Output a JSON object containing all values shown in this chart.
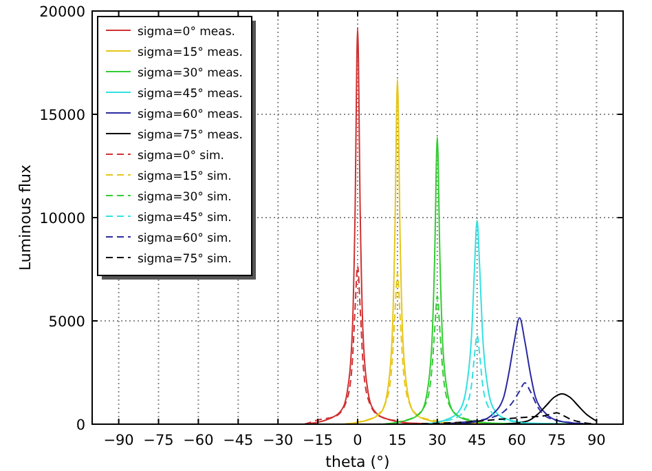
{
  "chart_data": {
    "type": "line",
    "xlabel": "theta (°)",
    "ylabel": "Luminous flux",
    "xlim": [
      -100,
      100
    ],
    "xticks": [
      -90,
      -75,
      -60,
      -45,
      -30,
      -15,
      0,
      15,
      30,
      45,
      60,
      75,
      90
    ],
    "ylim": [
      0,
      20000
    ],
    "yticks": [
      0,
      5000,
      10000,
      15000,
      20000
    ],
    "grid": true,
    "legend": "top left",
    "series": [
      {
        "name": "sigma=0° meas.",
        "color": "#d03030",
        "line_style": "solid",
        "x": [
          -20,
          -10,
          -6,
          -4,
          -2,
          -1,
          0,
          1,
          2,
          4,
          6,
          10,
          20,
          40,
          90
        ],
        "values": [
          0,
          300,
          700,
          1500,
          4500,
          10000,
          19200,
          10000,
          4500,
          1500,
          700,
          300,
          50,
          0,
          0
        ]
      },
      {
        "name": "sigma=15° meas.",
        "color": "#e6c619",
        "line_style": "solid",
        "x": [
          -5,
          5,
          9,
          11,
          13,
          14,
          15,
          16,
          17,
          19,
          21,
          25,
          35,
          90
        ],
        "values": [
          0,
          250,
          600,
          1400,
          4200,
          9000,
          16700,
          9000,
          4200,
          1400,
          600,
          250,
          50,
          0
        ]
      },
      {
        "name": "sigma=30° meas.",
        "color": "#33cc33",
        "line_style": "solid",
        "x": [
          10,
          20,
          24,
          26,
          28,
          29,
          30,
          31,
          32,
          34,
          36,
          40,
          50,
          90
        ],
        "values": [
          0,
          250,
          600,
          1400,
          4000,
          8000,
          13900,
          8000,
          4000,
          1400,
          600,
          250,
          50,
          0
        ]
      },
      {
        "name": "sigma=45° meas.",
        "color": "#33e0e0",
        "line_style": "solid",
        "x": [
          25,
          35,
          39,
          41,
          43,
          44,
          45,
          46,
          47,
          49,
          51,
          55,
          65,
          90
        ],
        "values": [
          0,
          300,
          800,
          1800,
          4500,
          7500,
          9870,
          7500,
          4500,
          1800,
          800,
          300,
          50,
          0
        ]
      },
      {
        "name": "sigma=60° meas.",
        "color": "#2a2aa0",
        "line_style": "solid",
        "x": [
          35,
          46,
          51,
          55,
          57,
          59,
          61,
          63,
          65,
          67,
          71,
          76,
          85,
          90
        ],
        "values": [
          0,
          150,
          500,
          1300,
          2500,
          4000,
          5150,
          4000,
          2500,
          1300,
          500,
          150,
          20,
          0
        ]
      },
      {
        "name": "sigma=75° meas.",
        "color": "#000000",
        "line_style": "solid",
        "x": [
          55,
          64,
          68,
          71,
          74,
          77,
          80,
          83,
          86,
          90
        ],
        "values": [
          0,
          150,
          500,
          900,
          1300,
          1470,
          1300,
          900,
          500,
          150
        ]
      },
      {
        "name": "sigma=0° sim.",
        "color": "#d03030",
        "line_style": "dashed",
        "x": [
          -20,
          -15,
          -8,
          -4,
          -2,
          -1,
          0,
          1,
          2,
          4,
          8,
          15,
          25,
          90
        ],
        "values": [
          0,
          200,
          400,
          1200,
          3000,
          5500,
          7670,
          5500,
          3000,
          1200,
          400,
          150,
          0,
          0
        ]
      },
      {
        "name": "sigma=15° sim.",
        "color": "#e6c619",
        "line_style": "dashed",
        "x": [
          -5,
          0,
          7,
          11,
          13,
          14,
          15,
          16,
          17,
          19,
          23,
          30,
          40,
          90
        ],
        "values": [
          0,
          100,
          400,
          1200,
          3000,
          5200,
          7300,
          5200,
          3000,
          1200,
          400,
          150,
          0,
          0
        ]
      },
      {
        "name": "sigma=30° sim.",
        "color": "#33cc33",
        "line_style": "dashed",
        "x": [
          10,
          15,
          22,
          26,
          28,
          29,
          30,
          31,
          32,
          34,
          38,
          45,
          55,
          90
        ],
        "values": [
          0,
          100,
          400,
          1100,
          2700,
          4500,
          6200,
          4500,
          2700,
          1100,
          400,
          150,
          0,
          0
        ]
      },
      {
        "name": "sigma=45° sim.",
        "color": "#33e0e0",
        "line_style": "dashed",
        "x": [
          25,
          30,
          37,
          41,
          43,
          44,
          45,
          46,
          47,
          49,
          53,
          60,
          70,
          90
        ],
        "values": [
          0,
          100,
          300,
          900,
          2000,
          3300,
          4300,
          3300,
          2000,
          900,
          300,
          100,
          0,
          0
        ]
      },
      {
        "name": "sigma=60° sim.",
        "color": "#2a2aa0",
        "line_style": "dashed",
        "x": [
          30,
          40,
          50,
          55,
          58,
          61,
          63,
          65,
          68,
          72,
          80,
          90
        ],
        "values": [
          0,
          100,
          300,
          600,
          1000,
          1600,
          2000,
          1600,
          800,
          300,
          80,
          0
        ]
      },
      {
        "name": "sigma=75° sim.",
        "color": "#000000",
        "line_style": "dashed",
        "x": [
          20,
          40,
          55,
          65,
          70,
          73,
          75,
          77,
          80,
          85,
          90
        ],
        "values": [
          0,
          100,
          250,
          350,
          400,
          500,
          550,
          450,
          250,
          80,
          0
        ]
      }
    ]
  }
}
